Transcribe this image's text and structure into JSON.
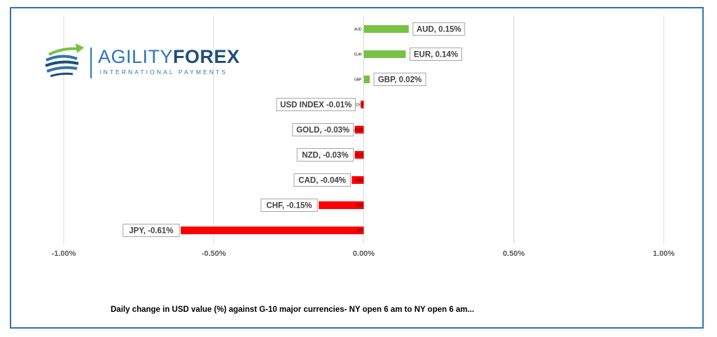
{
  "brand": {
    "word_part1": "AGILITY",
    "word_part2": "FOREX",
    "tagline": "INTERNATIONAL PAYMENTS",
    "colors": {
      "primary": "#2E74B5",
      "dark": "#1F4E79",
      "green": "#7AC143"
    }
  },
  "caption": "Daily change in  USD value (%)  against  G-10 major currencies- NY open 6 am to NY open 6 am...",
  "chart_data": {
    "type": "bar",
    "orientation": "horizontal",
    "categories": [
      "AUD",
      "EUR",
      "GBP",
      "DXY",
      "XAUUSD",
      "NZD",
      "CAD",
      "CHF",
      "JPY"
    ],
    "values": [
      0.15,
      0.14,
      0.02,
      -0.01,
      -0.03,
      -0.03,
      -0.04,
      -0.15,
      -0.61
    ],
    "data_labels": [
      "AUD, 0.15%",
      "EUR, 0.14%",
      "GBP, 0.02%",
      "USD INDEX -0.01%",
      "GOLD, -0.03%",
      "NZD, -0.03%",
      "CAD, -0.04%",
      "CHF, -0.15%",
      "JPY, -0.61%"
    ],
    "xlim": [
      -1.0,
      1.0
    ],
    "xticks": [
      -1.0,
      -0.5,
      0.0,
      0.5,
      1.0
    ],
    "xtick_labels": [
      "-1.00%",
      "-0.50%",
      "0.00%",
      "0.50%",
      "1.00%"
    ],
    "grid": "vertical",
    "colors": {
      "positive": "#7AC143",
      "negative": "#FF0000"
    },
    "title": "",
    "xlabel": "",
    "ylabel": ""
  }
}
